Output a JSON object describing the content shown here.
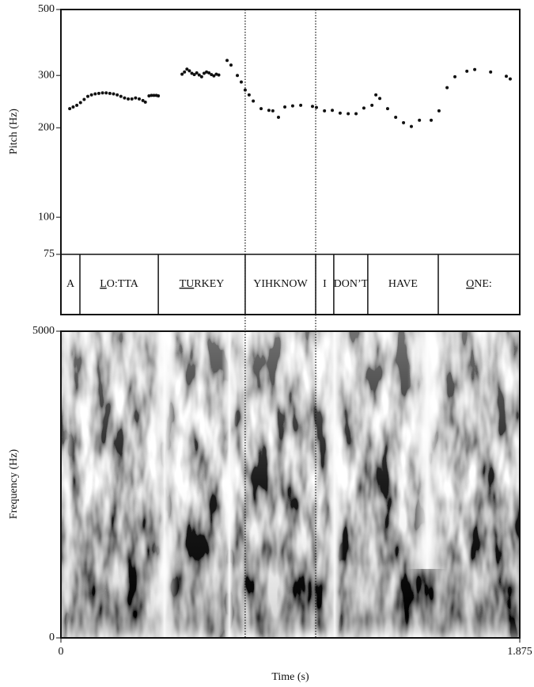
{
  "chart_data": [
    {
      "type": "pitch",
      "ylabel": "Pitch (Hz)",
      "yscale": "log",
      "ylim": [
        75,
        500
      ],
      "yticks": [
        75,
        100,
        200,
        300,
        500
      ],
      "xlim": [
        0,
        1.875
      ],
      "color": "#111111",
      "x": [
        0.036,
        0.05,
        0.065,
        0.08,
        0.095,
        0.11,
        0.125,
        0.14,
        0.155,
        0.17,
        0.185,
        0.2,
        0.215,
        0.23,
        0.245,
        0.26,
        0.275,
        0.29,
        0.305,
        0.32,
        0.335,
        0.345,
        0.36,
        0.37,
        0.38,
        0.39,
        0.398,
        0.495,
        0.505,
        0.515,
        0.525,
        0.535,
        0.545,
        0.555,
        0.565,
        0.575,
        0.585,
        0.595,
        0.605,
        0.615,
        0.625,
        0.635,
        0.645,
        0.679,
        0.695,
        0.721,
        0.737,
        0.753,
        0.769,
        0.786,
        0.818,
        0.85,
        0.866,
        0.889,
        0.915,
        0.947,
        0.98,
        1.028,
        1.044,
        1.077,
        1.109,
        1.141,
        1.174,
        1.206,
        1.238,
        1.271,
        1.287,
        1.303,
        1.335,
        1.368,
        1.4,
        1.432,
        1.465,
        1.513,
        1.545,
        1.578,
        1.61,
        1.659,
        1.691,
        1.756,
        1.82,
        1.836
      ],
      "y": [
        232,
        235,
        238,
        243,
        249,
        255,
        258,
        260,
        261,
        262,
        262,
        261,
        260,
        258,
        255,
        252,
        250,
        250,
        252,
        250,
        247,
        244,
        256,
        257,
        257,
        257,
        256,
        303,
        308,
        315,
        311,
        305,
        302,
        306,
        301,
        297,
        305,
        308,
        306,
        302,
        299,
        303,
        301,
        337,
        325,
        300,
        285,
        268,
        258,
        246,
        232,
        229,
        228,
        217,
        235,
        237,
        238,
        236,
        234,
        228,
        229,
        224,
        223,
        223,
        233,
        238,
        258,
        251,
        232,
        217,
        208,
        202,
        212,
        212,
        228,
        273,
        297,
        310,
        314,
        308,
        298,
        292
      ],
      "boundaries": [
        0.0776,
        0.398,
        0.753,
        1.041,
        1.115,
        1.254,
        1.542
      ],
      "labels": [
        [
          "A"
        ],
        [
          "L",
          "O:TTA"
        ],
        [
          "TU",
          "RKEY"
        ],
        [
          "YIHKNOW"
        ],
        [
          "I"
        ],
        [
          "DON’T"
        ],
        [
          "HAVE"
        ],
        [
          "O",
          "NE:"
        ]
      ],
      "underlined_first_part": [
        false,
        true,
        true,
        false,
        false,
        false,
        false,
        true
      ],
      "cursors": [
        0.753,
        1.041
      ]
    },
    {
      "type": "spectrogram",
      "xlabel": "Time (s)",
      "ylabel": "Frequency (Hz)",
      "xlim": [
        0,
        1.875
      ],
      "xticks": [
        0,
        1.875
      ],
      "ylim": [
        0,
        5000
      ],
      "yticks": [
        0,
        5000
      ]
    }
  ]
}
